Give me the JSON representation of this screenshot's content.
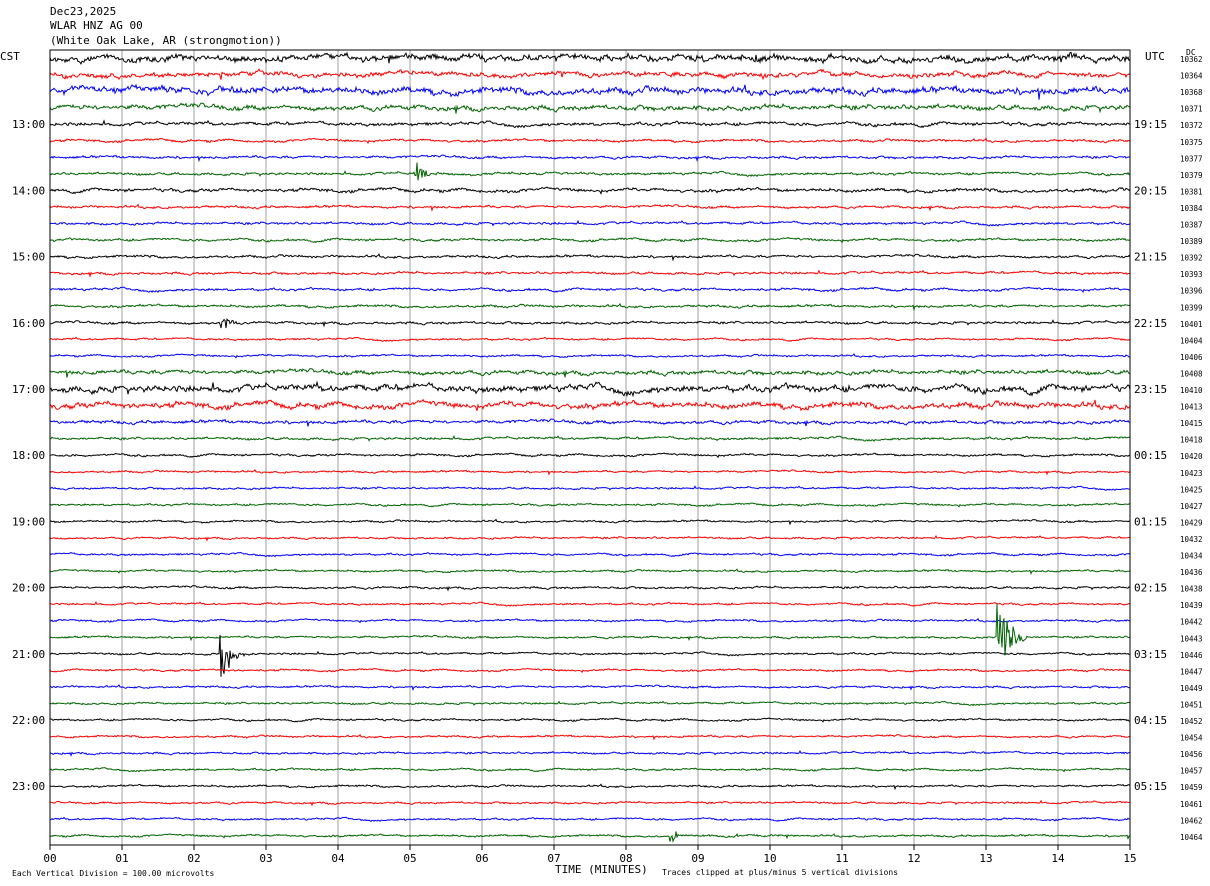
{
  "header": {
    "date": "Dec23,2025",
    "station": "WLAR HNZ AG 00",
    "location": "(White Oak Lake, AR (strongmotion))",
    "left_tz": "CST",
    "right_tz": "UTC",
    "right_col": "DC"
  },
  "footer": {
    "scale_note": "Each Vertical Division = 100.00 microvolts",
    "xlabel": "TIME (MINUTES)",
    "clip_note": "Traces clipped at plus/minus 5 vertical divisions"
  },
  "chart_data": {
    "type": "line",
    "subtype": "helicorder",
    "xlabel": "TIME (MINUTES)",
    "xlim": [
      0,
      15
    ],
    "x_ticks": [
      "00",
      "01",
      "02",
      "03",
      "04",
      "05",
      "06",
      "07",
      "08",
      "09",
      "10",
      "11",
      "12",
      "13",
      "14",
      "15"
    ],
    "trace_colors": [
      "#000000",
      "#ff0000",
      "#0000ff",
      "#006400"
    ],
    "left_hour_labels": [
      {
        "row": 4,
        "label": "13:00"
      },
      {
        "row": 8,
        "label": "14:00"
      },
      {
        "row": 12,
        "label": "15:00"
      },
      {
        "row": 16,
        "label": "16:00"
      },
      {
        "row": 20,
        "label": "17:00"
      },
      {
        "row": 24,
        "label": "18:00"
      },
      {
        "row": 28,
        "label": "19:00"
      },
      {
        "row": 32,
        "label": "20:00"
      },
      {
        "row": 36,
        "label": "21:00"
      },
      {
        "row": 40,
        "label": "22:00"
      },
      {
        "row": 44,
        "label": "23:00"
      }
    ],
    "right_hour_labels": [
      {
        "row": 4,
        "label": "19:15"
      },
      {
        "row": 8,
        "label": "20:15"
      },
      {
        "row": 12,
        "label": "21:15"
      },
      {
        "row": 16,
        "label": "22:15"
      },
      {
        "row": 20,
        "label": "23:15"
      },
      {
        "row": 24,
        "label": "00:15"
      },
      {
        "row": 28,
        "label": "01:15"
      },
      {
        "row": 32,
        "label": "02:15"
      },
      {
        "row": 36,
        "label": "03:15"
      },
      {
        "row": 40,
        "label": "04:15"
      },
      {
        "row": 44,
        "label": "05:15"
      }
    ],
    "dc_offsets": [
      10362,
      10364,
      10368,
      10371,
      10372,
      10375,
      10377,
      10379,
      10381,
      10384,
      10387,
      10389,
      10392,
      10393,
      10396,
      10399,
      10401,
      10404,
      10406,
      10408,
      10410,
      10413,
      10415,
      10418,
      10420,
      10423,
      10425,
      10427,
      10429,
      10432,
      10434,
      10436,
      10438,
      10439,
      10442,
      10443,
      10446,
      10447,
      10449,
      10451,
      10452,
      10454,
      10456,
      10457,
      10459,
      10461,
      10462,
      10464
    ],
    "noise_levels": [
      4,
      3,
      4,
      3,
      2,
      1.5,
      1.5,
      1.5,
      2,
      1.5,
      1.5,
      1.5,
      1.5,
      1.5,
      1.5,
      1.5,
      1.5,
      1.2,
      1.2,
      2.5,
      4,
      3.5,
      2,
      1.5,
      1.3,
      1.2,
      1.2,
      1.2,
      1.2,
      1.2,
      1.2,
      1.2,
      1.3,
      1.2,
      1.2,
      1.2,
      1.2,
      1.2,
      1.2,
      1.2,
      1.2,
      1.2,
      1.2,
      1.2,
      1.2,
      1.2,
      1.2,
      1.2
    ],
    "events": [
      {
        "row": 36,
        "minute": 2.4,
        "amplitude": 30,
        "duration_min": 0.3
      },
      {
        "row": 35,
        "minute": 13.2,
        "amplitude": 38,
        "duration_min": 0.4
      },
      {
        "row": 47,
        "minute": 8.65,
        "amplitude": 7,
        "duration_min": 0.25
      },
      {
        "row": 16,
        "minute": 2.4,
        "amplitude": 8,
        "duration_min": 0.25
      },
      {
        "row": 7,
        "minute": 5.1,
        "amplitude": 10,
        "duration_min": 0.3
      }
    ]
  }
}
